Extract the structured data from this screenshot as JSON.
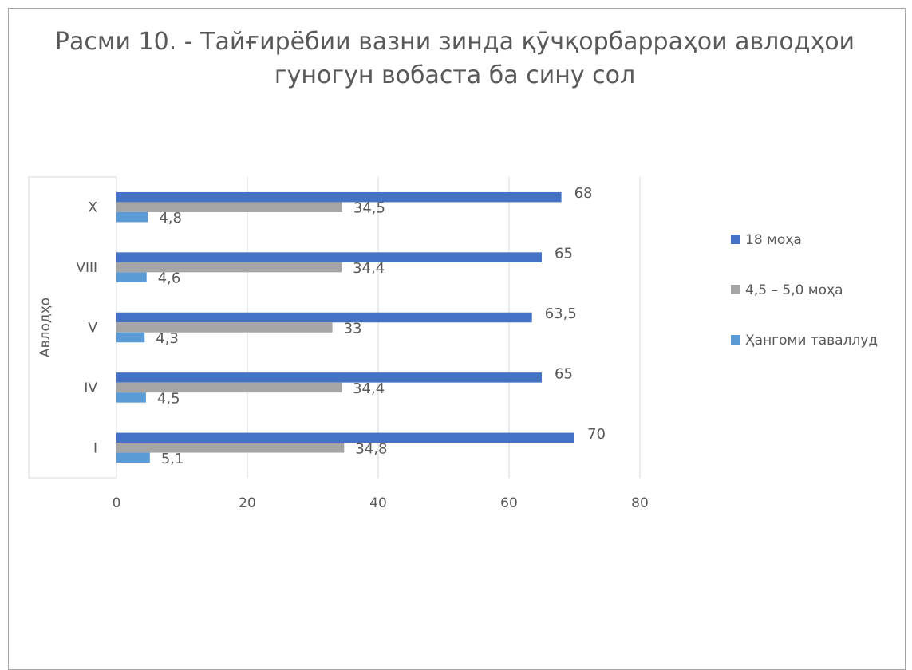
{
  "chart_data": {
    "type": "bar",
    "orientation": "horizontal",
    "title": "Расми 10. -  Тайғирёбии  вазни  зинда қӯчқорбарраҳои авлодҳои  гуногун вобаста  ба  сину  сол",
    "ylabel": "Авлодҳо",
    "xlabel": "",
    "categories": [
      "I",
      "IV",
      "V",
      "VIII",
      "X"
    ],
    "series": [
      {
        "name": "18  моҳа",
        "color": "#4472c4",
        "values": [
          70,
          65,
          63.5,
          65,
          68
        ],
        "labels": [
          "70",
          "65",
          "63,5",
          "65",
          "68"
        ]
      },
      {
        "name": "4,5 – 5,0 моҳа",
        "color": "#a5a5a5",
        "values": [
          34.8,
          34.4,
          33,
          34.4,
          34.5
        ],
        "labels": [
          "34,8",
          "34,4",
          "33",
          "34,4",
          "34,5"
        ]
      },
      {
        "name": "Ҳангоми таваллуд",
        "color": "#5b9bd5",
        "values": [
          5.1,
          4.5,
          4.3,
          4.6,
          4.8
        ],
        "labels": [
          "5,1",
          "4,5",
          "4,3",
          "4,6",
          "4,8"
        ]
      }
    ],
    "xlim": [
      0,
      80
    ],
    "xticks": [
      "0",
      "20",
      "40",
      "60",
      "80"
    ],
    "grid": true,
    "legend_position": "right"
  }
}
